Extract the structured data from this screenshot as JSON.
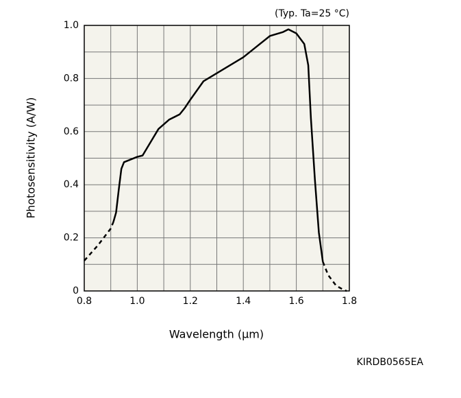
{
  "chart_data": {
    "type": "line",
    "annotation": "(Typ. Ta=25 °C)",
    "xlabel": "Wavelength (µm)",
    "ylabel": "Photosensitivity (A/W)",
    "code": "KIRDB0565EA",
    "x": [
      0.8,
      0.85,
      0.9,
      0.91,
      0.92,
      0.93,
      0.94,
      0.95,
      1.0,
      1.02,
      1.05,
      1.08,
      1.12,
      1.16,
      1.18,
      1.2,
      1.25,
      1.3,
      1.35,
      1.4,
      1.45,
      1.5,
      1.55,
      1.57,
      1.6,
      1.63,
      1.645,
      1.655,
      1.67,
      1.685,
      1.7,
      1.72,
      1.75,
      1.78,
      1.79
    ],
    "series": [
      {
        "color": "#000000",
        "dashed": false,
        "values": [
          null,
          null,
          null,
          0.26,
          0.295,
          0.38,
          0.46,
          0.485,
          0.505,
          0.51,
          0.56,
          0.61,
          0.645,
          0.665,
          0.69,
          0.72,
          0.79,
          0.82,
          0.85,
          0.88,
          0.92,
          0.96,
          0.975,
          0.985,
          0.97,
          0.93,
          0.85,
          0.65,
          0.42,
          0.22,
          0.11,
          null,
          null,
          null,
          null
        ]
      },
      {
        "color": "#000000",
        "dashed": true,
        "values": [
          0.114,
          0.17,
          0.235,
          0.26,
          null,
          null,
          null,
          null,
          null,
          null,
          null,
          null,
          null,
          null,
          null,
          null,
          null,
          null,
          null,
          null,
          null,
          null,
          null,
          null,
          null,
          null,
          null,
          null,
          null,
          null,
          0.11,
          0.06,
          0.02,
          0.003,
          0
        ]
      }
    ],
    "xlim": [
      0.8,
      1.8
    ],
    "ylim": [
      0,
      1
    ],
    "xticks": [
      0.8,
      {
        "value": 1,
        "label": "1.0"
      },
      1.2,
      1.4,
      1.6,
      1.8
    ],
    "yticks": [
      0,
      0.2,
      0.4,
      0.6,
      0.8,
      {
        "value": 1,
        "label": "1.0"
      }
    ],
    "xgrid": [
      0.9,
      1.1,
      1.3,
      1.5,
      1.7
    ],
    "ygrid": [
      0.1,
      0.3,
      0.5,
      0.7,
      0.9
    ],
    "grid": true,
    "background": "#f4f3ec"
  }
}
